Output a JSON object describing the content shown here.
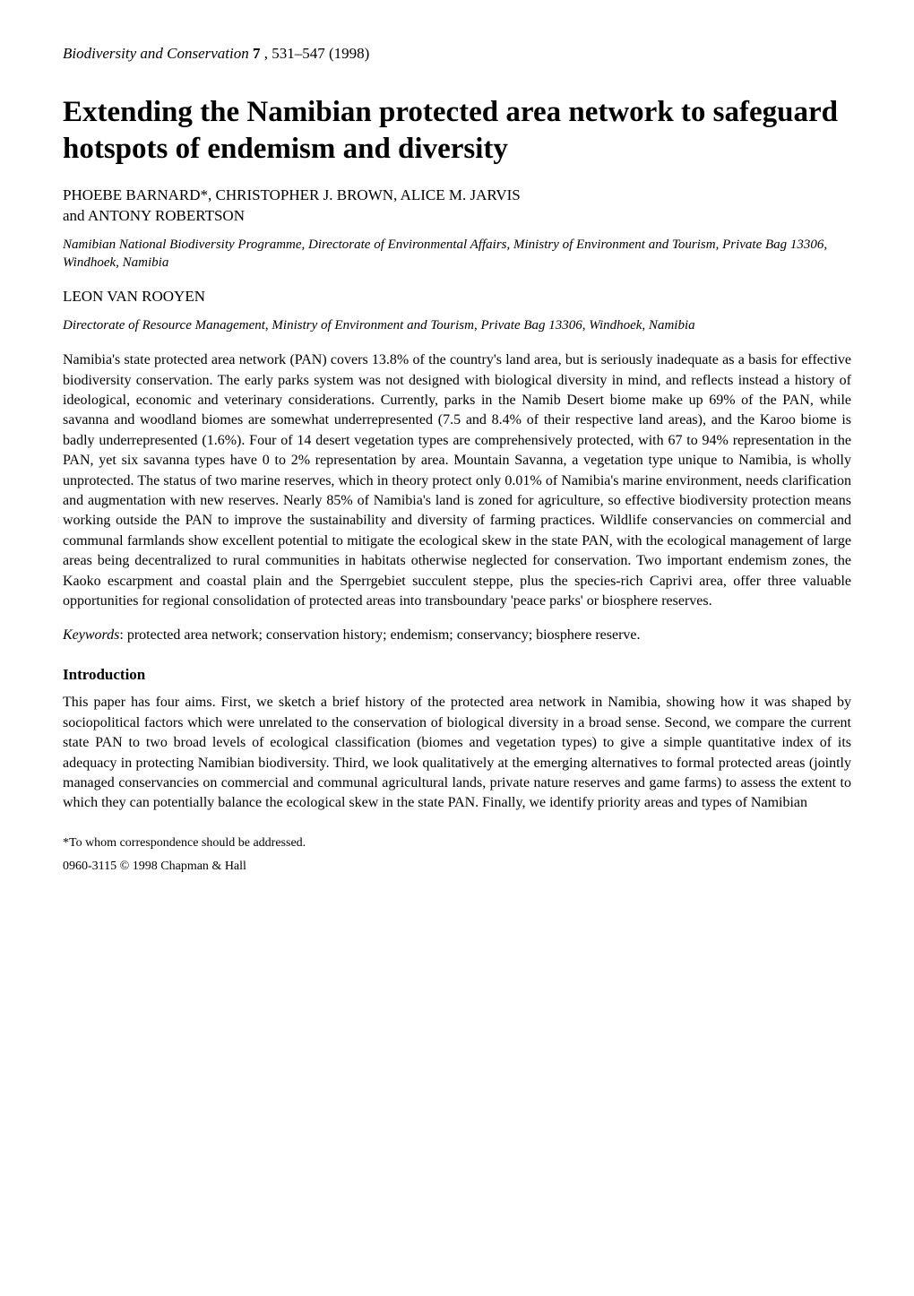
{
  "journal": {
    "name": "Biodiversity and Conservation",
    "volume": "7",
    "pages": "531–547",
    "year": "(1998)"
  },
  "title": "Extending the Namibian protected area network to safeguard hotspots of endemism and diversity",
  "author_group_1": {
    "names_upper": "PHOEBE BARNARD*, CHRISTOPHER J. BROWN, ALICE M. JARVIS",
    "names_line2": "and ANTONY ROBERTSON",
    "affiliation": "Namibian National Biodiversity Programme, Directorate of Environmental Affairs, Ministry of Environment and Tourism, Private Bag 13306, Windhoek, Namibia"
  },
  "author_group_2": {
    "names_upper": "LEON VAN ROOYEN",
    "affiliation": "Directorate of Resource Management, Ministry of Environment and Tourism, Private Bag 13306, Windhoek, Namibia"
  },
  "abstract": "Namibia's state protected area network (PAN) covers 13.8% of the country's land area, but is seriously inadequate as a basis for effective biodiversity conservation. The early parks system was not designed with biological diversity in mind, and reflects instead a history of ideological, economic and veterinary considerations. Currently, parks in the Namib Desert biome make up 69% of the PAN, while savanna and woodland biomes are somewhat underrepresented (7.5 and 8.4% of their respective land areas), and the Karoo biome is badly underrepresented (1.6%). Four of 14 desert vegetation types are comprehensively protected, with 67 to 94% representation in the PAN, yet six savanna types have 0 to 2% representation by area. Mountain Savanna, a vegetation type unique to Namibia, is wholly unprotected. The status of two marine reserves, which in theory protect only 0.01% of Namibia's marine environment, needs clarification and augmentation with new reserves. Nearly 85% of Namibia's land is zoned for agriculture, so effective biodiversity protection means working outside the PAN to improve the sustainability and diversity of farming practices. Wildlife conservancies on commercial and communal farmlands show excellent potential to mitigate the ecological skew in the state PAN, with the ecological management of large areas being decentralized to rural communities in habitats otherwise neglected for conservation. Two important endemism zones, the Kaoko escarpment and coastal plain and the Sperrgebiet succulent steppe, plus the species-rich Caprivi area, offer three valuable opportunities for regional consolidation of protected areas into transboundary 'peace parks' or biosphere reserves.",
  "keywords": {
    "label": "Keywords",
    "text": ": protected area network; conservation history; endemism; conservancy; biosphere reserve."
  },
  "section_heading": "Introduction",
  "body": "This paper has four aims. First, we sketch a brief history of the protected area network in Namibia, showing how it was shaped by sociopolitical factors which were unrelated to the conservation of biological diversity in a broad sense. Second, we compare the current state PAN to two broad levels of ecological classification (biomes and vegetation types) to give a simple quantitative index of its adequacy in protecting Namibian biodiversity. Third, we look qualitatively at the emerging alternatives to formal protected areas (jointly managed conservancies on commercial and communal agricultural lands, private nature reserves and game farms) to assess the extent to which they can potentially balance the ecological skew in the state PAN. Finally, we identify priority areas and types of Namibian",
  "footnote": "*To whom correspondence should be addressed.",
  "copyright": "0960-3115 © 1998 Chapman & Hall"
}
